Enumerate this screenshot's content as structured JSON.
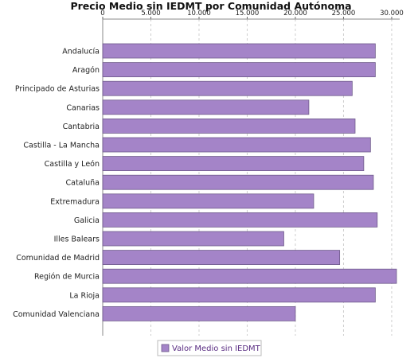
{
  "chart_data": {
    "type": "bar",
    "orientation": "horizontal",
    "title": "Precio Medio sin IEDMT por Comunidad Autónoma",
    "xlabel": "",
    "ylabel": "",
    "xlim": [
      0,
      30500
    ],
    "x_ticks": [
      0,
      5000,
      10000,
      15000,
      20000,
      25000,
      30000
    ],
    "x_tick_labels": [
      "0",
      "5.000",
      "10.000",
      "15.000",
      "20.000",
      "25.000",
      "30.000"
    ],
    "grid": true,
    "axis_position": "top",
    "legend_position": "bottom-center",
    "categories": [
      "Andalucía",
      "Aragón",
      "Principado de Asturias",
      "Canarias",
      "Cantabria",
      "Castilla - La Mancha",
      "Castilla y León",
      "Cataluña",
      "Extremadura",
      "Galicia",
      "Illes Balears",
      "Comunidad de Madrid",
      "Región de Murcia",
      "La Rioja",
      "Comunidad Valenciana"
    ],
    "series": [
      {
        "name": "Valor Medio sin IEDMT",
        "color": "#a484c8",
        "values": [
          28300,
          28300,
          25900,
          21400,
          26200,
          27800,
          27100,
          28100,
          21900,
          28500,
          18800,
          24600,
          30500,
          28300,
          20000
        ]
      }
    ]
  }
}
